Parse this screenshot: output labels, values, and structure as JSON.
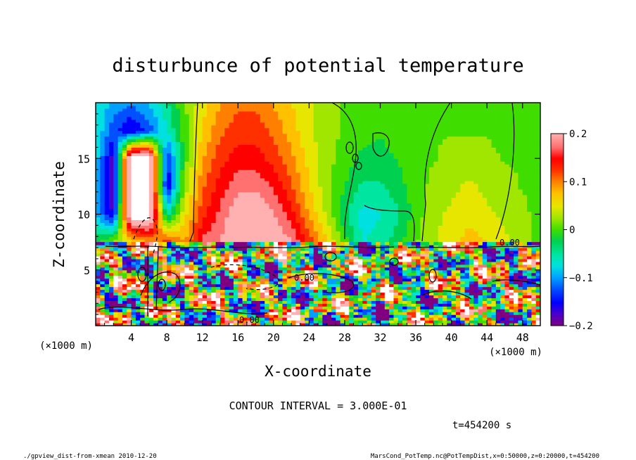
{
  "chart_data": {
    "type": "heatmap",
    "title": "disturbunce of potential temperature",
    "xlabel": "X-coordinate",
    "ylabel": "Z-coordinate",
    "x_unit": "(×1000 m)",
    "y_unit": "(×1000 m)",
    "xlim": [
      0,
      50
    ],
    "ylim": [
      0,
      20
    ],
    "x_ticks": [
      4,
      8,
      12,
      16,
      20,
      24,
      28,
      32,
      36,
      40,
      44,
      48
    ],
    "y_ticks": [
      5,
      10,
      15
    ],
    "colorbar": {
      "range": [
        -0.2,
        0.2
      ],
      "tick_values": [
        0.2,
        0.1,
        0,
        -0.1,
        -0.2
      ],
      "tick_labels": [
        "0.2",
        "0.1",
        "0",
        "−0.1",
        "−0.2"
      ],
      "colors": [
        "#800080",
        "#4b00cc",
        "#0000ff",
        "#0050ff",
        "#00a0ff",
        "#00e0e0",
        "#00e6a0",
        "#00d050",
        "#40dd00",
        "#a0e600",
        "#e6e600",
        "#ffc000",
        "#ff8000",
        "#ff3000",
        "#ff0000",
        "#ff7070",
        "#ffb0b0",
        "#ffffff"
      ]
    },
    "contour_interval_text": "CONTOUR INTERVAL = 3.000E-01",
    "contour_labels": [
      "0.00",
      "0.00",
      "0.00"
    ],
    "upper_field": {
      "x_knots": [
        0,
        2,
        4,
        6,
        8,
        10,
        12,
        14,
        16,
        18,
        20,
        22,
        24,
        26,
        28,
        30,
        32,
        34,
        36,
        38,
        40,
        42,
        44,
        46,
        48,
        50
      ],
      "z_levels": [
        7.5,
        10,
        12.5,
        15,
        17.5,
        20
      ],
      "values": [
        [
          -0.02,
          0.02,
          0.05,
          0.08,
          0.12,
          0.08,
          0.16,
          0.18,
          0.2,
          0.22,
          0.2,
          0.18,
          0.12,
          0.06,
          0.0,
          -0.06,
          -0.05,
          -0.02,
          0.01,
          0.03,
          0.05,
          0.07,
          0.06,
          0.04,
          0.02,
          0.0
        ],
        [
          -0.08,
          -0.16,
          0.25,
          0.25,
          -0.05,
          0.05,
          0.12,
          0.16,
          0.2,
          0.21,
          0.18,
          0.14,
          0.08,
          0.03,
          -0.03,
          -0.07,
          -0.06,
          -0.04,
          0.0,
          0.03,
          0.04,
          0.05,
          0.04,
          0.03,
          0.02,
          0.0
        ],
        [
          -0.09,
          -0.18,
          0.25,
          0.25,
          -0.16,
          0.02,
          0.1,
          0.14,
          0.17,
          0.17,
          0.15,
          0.11,
          0.06,
          0.02,
          -0.01,
          -0.04,
          -0.04,
          -0.02,
          0.0,
          0.02,
          0.03,
          0.04,
          0.03,
          0.02,
          0.01,
          0.0
        ],
        [
          -0.07,
          -0.17,
          0.25,
          0.25,
          -0.14,
          0.0,
          0.08,
          0.12,
          0.14,
          0.14,
          0.12,
          0.09,
          0.05,
          0.02,
          0.0,
          -0.02,
          -0.02,
          -0.01,
          0.0,
          0.01,
          0.02,
          0.02,
          0.02,
          0.01,
          0.01,
          0.0
        ],
        [
          -0.06,
          -0.12,
          -0.16,
          -0.12,
          -0.06,
          0.0,
          0.06,
          0.1,
          0.12,
          0.12,
          0.1,
          0.07,
          0.04,
          0.02,
          0.01,
          0.0,
          -0.01,
          0.0,
          0.0,
          0.01,
          0.01,
          0.01,
          0.01,
          0.0,
          0.0,
          0.0
        ],
        [
          -0.06,
          -0.09,
          -0.1,
          -0.08,
          -0.04,
          0.01,
          0.05,
          0.08,
          0.1,
          0.1,
          0.08,
          0.06,
          0.04,
          0.02,
          0.01,
          0.0,
          0.0,
          0.0,
          0.0,
          0.0,
          0.0,
          0.0,
          0.0,
          0.0,
          0.0,
          0.0
        ]
      ]
    },
    "lower_field": "high-frequency noisy disturbance below z≈7.5 (values spanning −0.2 to 0.25)"
  },
  "time_label": "t=454200 s",
  "footer": {
    "left": "./gpview_dist-from-xmean  2010-12-20",
    "right": "MarsCond_PotTemp.nc@PotTempDist,x=0:50000,z=0:20000,t=454200"
  }
}
